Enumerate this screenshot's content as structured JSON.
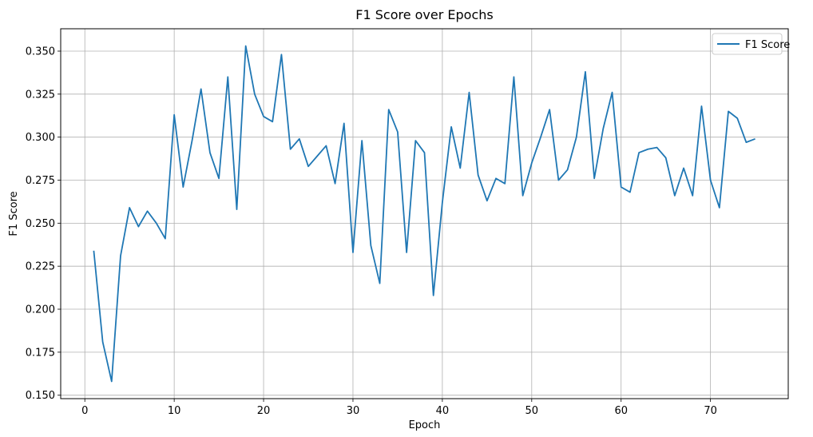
{
  "chart_data": {
    "type": "line",
    "title": "F1 Score over Epochs",
    "xlabel": "Epoch",
    "ylabel": "F1 Score",
    "xlim": [
      -2.7,
      78.7
    ],
    "ylim": [
      0.148,
      0.363
    ],
    "xticks": [
      0,
      10,
      20,
      30,
      40,
      50,
      60,
      70
    ],
    "yticks": [
      0.15,
      0.175,
      0.2,
      0.225,
      0.25,
      0.275,
      0.3,
      0.325,
      0.35
    ],
    "ytick_labels": [
      "0.150",
      "0.175",
      "0.200",
      "0.225",
      "0.250",
      "0.275",
      "0.300",
      "0.325",
      "0.350"
    ],
    "grid": true,
    "legend_position": "top-right",
    "series": [
      {
        "name": "F1 Score",
        "color": "#1f77b4",
        "x": [
          1,
          2,
          3,
          4,
          5,
          6,
          7,
          8,
          9,
          10,
          11,
          12,
          13,
          14,
          15,
          16,
          17,
          18,
          19,
          20,
          21,
          22,
          23,
          24,
          25,
          26,
          27,
          28,
          29,
          30,
          31,
          32,
          33,
          34,
          35,
          36,
          37,
          38,
          39,
          40,
          41,
          42,
          43,
          44,
          45,
          46,
          47,
          48,
          49,
          50,
          51,
          52,
          53,
          54,
          55,
          56,
          57,
          58,
          59,
          60,
          61,
          62,
          63,
          64,
          65,
          66,
          67,
          68,
          69,
          70,
          71,
          72,
          73,
          74,
          75
        ],
        "values": [
          0.234,
          0.181,
          0.158,
          0.231,
          0.259,
          0.248,
          0.257,
          0.25,
          0.241,
          0.313,
          0.271,
          0.298,
          0.328,
          0.291,
          0.276,
          0.335,
          0.258,
          0.353,
          0.325,
          0.312,
          0.309,
          0.348,
          0.293,
          0.299,
          0.283,
          0.289,
          0.295,
          0.273,
          0.308,
          0.233,
          0.298,
          0.237,
          0.215,
          0.316,
          0.303,
          0.233,
          0.298,
          0.291,
          0.208,
          0.262,
          0.306,
          0.282,
          0.326,
          0.278,
          0.263,
          0.276,
          0.273,
          0.335,
          0.266,
          0.285,
          0.3,
          0.316,
          0.275,
          0.281,
          0.3,
          0.338,
          0.276,
          0.305,
          0.326,
          0.271,
          0.268,
          0.291,
          0.293,
          0.294,
          0.288,
          0.266,
          0.282,
          0.266,
          0.318,
          0.275,
          0.259,
          0.315,
          0.311,
          0.297,
          0.299
        ]
      }
    ]
  }
}
